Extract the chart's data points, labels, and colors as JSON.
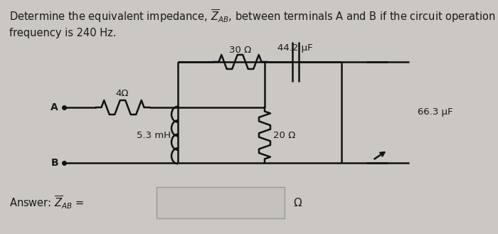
{
  "bg_color": "#cbc7c3",
  "title_line1": "Determine the equivalent impedance, $\\overline{Z}_{AB}$, between terminals A and B if the circuit operation",
  "title_line2": "frequency is 240 Hz.",
  "component_30R": "30 Ω",
  "component_44uF": "44.2 μF",
  "component_4R": "4Ω",
  "component_5mH": "5.3 mH",
  "component_20R": "20 Ω",
  "component_66uF": "66.3 μF",
  "answer_label": "Answer: $\\overline{Z}_{AB}$ =",
  "answer_unit": "Ω",
  "text_color": "#1a1a1a",
  "line_color": "#111111",
  "title_fontsize": 10.5,
  "label_fontsize": 10,
  "small_fontsize": 9.5,
  "lw": 1.8
}
